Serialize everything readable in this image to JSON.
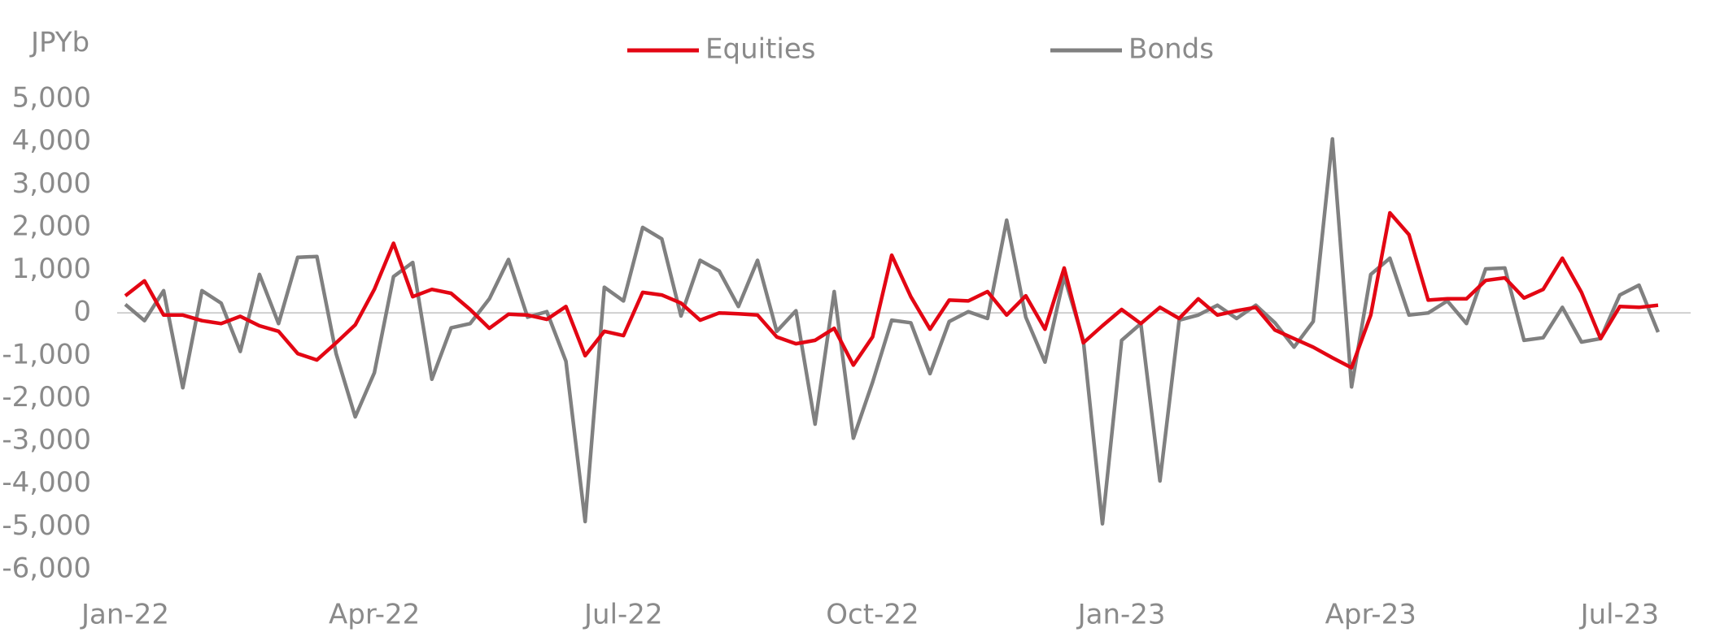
{
  "chart_data": {
    "type": "line",
    "y_axis_label": "JPYb",
    "categories": [
      "Jan-22",
      null,
      null,
      null,
      null,
      null,
      null,
      null,
      null,
      null,
      null,
      null,
      null,
      "Apr-22",
      null,
      null,
      null,
      null,
      null,
      null,
      null,
      null,
      null,
      null,
      null,
      null,
      "Jul-22",
      null,
      null,
      null,
      null,
      null,
      null,
      null,
      null,
      null,
      null,
      null,
      null,
      "Oct-22",
      null,
      null,
      null,
      null,
      null,
      null,
      null,
      null,
      null,
      null,
      null,
      null,
      "Jan-23",
      null,
      null,
      null,
      null,
      null,
      null,
      null,
      null,
      null,
      null,
      null,
      null,
      "Apr-23",
      null,
      null,
      null,
      null,
      null,
      null,
      null,
      null,
      null,
      null,
      null,
      null,
      "Jul-23",
      null,
      null
    ],
    "series": [
      {
        "name": "Equities",
        "color": "#e30613",
        "values": [
          400,
          750,
          -50,
          -50,
          -180,
          -250,
          -80,
          -300,
          -430,
          -950,
          -1100,
          -700,
          -280,
          550,
          1630,
          380,
          550,
          460,
          80,
          -360,
          -30,
          -50,
          -150,
          150,
          -1000,
          -430,
          -530,
          480,
          420,
          230,
          -170,
          0,
          -20,
          -50,
          -560,
          -720,
          -640,
          -360,
          -1220,
          -560,
          1350,
          380,
          -380,
          300,
          280,
          500,
          -50,
          400,
          -380,
          1050,
          -700,
          -300,
          80,
          -250,
          130,
          -130,
          330,
          -50,
          50,
          130,
          -400,
          -600,
          -800,
          -1050,
          -1280,
          -50,
          2340,
          1830,
          300,
          330,
          330,
          760,
          820,
          350,
          550,
          1280,
          480,
          -600,
          150,
          130,
          180
        ]
      },
      {
        "name": "Bonds",
        "color": "#808080",
        "values": [
          200,
          -180,
          520,
          -1750,
          520,
          230,
          -900,
          900,
          -250,
          1300,
          1320,
          -950,
          -2430,
          -1400,
          850,
          1180,
          -1550,
          -350,
          -250,
          330,
          1250,
          -100,
          30,
          -1130,
          -4880,
          600,
          280,
          2000,
          1730,
          -70,
          1230,
          980,
          150,
          1230,
          -430,
          50,
          -2600,
          500,
          -2930,
          -1620,
          -170,
          -230,
          -1420,
          -200,
          30,
          -130,
          2170,
          -100,
          -1150,
          850,
          -640,
          -4930,
          -640,
          -250,
          -3930,
          -170,
          -50,
          180,
          -130,
          180,
          -230,
          -800,
          -200,
          4070,
          -1730,
          900,
          1280,
          -50,
          0,
          280,
          -250,
          1030,
          1050,
          -640,
          -580,
          130,
          -680,
          -600,
          420,
          650,
          -450
        ]
      }
    ],
    "ylim": [
      -6000,
      5000
    ],
    "yticks": [
      {
        "value": -6000,
        "label": "-6,000"
      },
      {
        "value": -5000,
        "label": "-5,000"
      },
      {
        "value": -4000,
        "label": "-4,000"
      },
      {
        "value": -3000,
        "label": "-3,000"
      },
      {
        "value": -2000,
        "label": "-2,000"
      },
      {
        "value": -1000,
        "label": "-1,000"
      },
      0,
      {
        "value": 1000,
        "label": "1,000"
      },
      {
        "value": 2000,
        "label": "2,000"
      },
      {
        "value": 3000,
        "label": "3,000"
      },
      {
        "value": 4000,
        "label": "4,000"
      },
      {
        "value": 5000,
        "label": "5,000"
      }
    ],
    "grid": false
  }
}
